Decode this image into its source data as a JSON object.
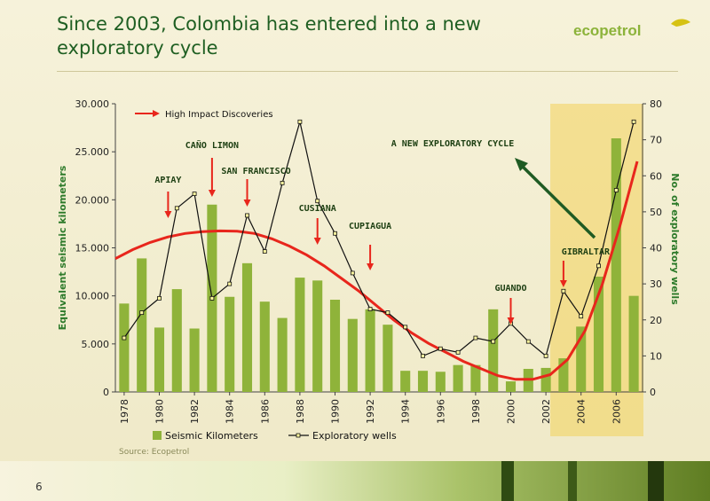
{
  "slide": {
    "title": "Since 2003, Colombia has entered into a new exploratory cycle",
    "logo_text": "ecopetrol",
    "page_number": "6",
    "source": "Source: Ecopetrol"
  },
  "chart_data": {
    "type": "bar",
    "years": [
      1978,
      1979,
      1980,
      1981,
      1982,
      1983,
      1984,
      1985,
      1986,
      1987,
      1988,
      1989,
      1990,
      1991,
      1992,
      1993,
      1994,
      1995,
      1996,
      1997,
      1998,
      1999,
      2000,
      2001,
      2002,
      2003,
      2004,
      2005,
      2006,
      2007
    ],
    "x_tick_labels": [
      "1978",
      "1980",
      "1982",
      "1984",
      "1986",
      "1988",
      "1990",
      "1992",
      "1994",
      "1996",
      "1998",
      "2000",
      "2002",
      "2004",
      "2006"
    ],
    "y_left": {
      "label": "Equivalent seismic kilometers",
      "min": 0,
      "max": 30000,
      "ticks": [
        "0",
        "5.000",
        "10.000",
        "15.000",
        "20.000",
        "25.000",
        "30.000"
      ]
    },
    "y_right": {
      "label": "No. of exploratory wells",
      "min": 0,
      "max": 80,
      "ticks": [
        "0",
        "10",
        "20",
        "30",
        "40",
        "50",
        "60",
        "70",
        "80"
      ]
    },
    "series": [
      {
        "name": "Seismic Kilometers",
        "axis": "left",
        "kind": "bar",
        "color": "#8fb33a",
        "values": [
          9200,
          13900,
          6700,
          10700,
          6600,
          19500,
          9900,
          13400,
          9400,
          7700,
          11900,
          11600,
          9600,
          7600,
          8600,
          7000,
          2200,
          2200,
          2100,
          2800,
          2800,
          8600,
          1100,
          2400,
          2500,
          3500,
          6800,
          12000,
          26400,
          10000
        ]
      },
      {
        "name": "Exploratory wells",
        "axis": "right",
        "kind": "line",
        "color": "#111111",
        "values": [
          15,
          22,
          26,
          51,
          55,
          26,
          30,
          49,
          39,
          58,
          75,
          53,
          44,
          33,
          23,
          22,
          18,
          10,
          12,
          11,
          15,
          14,
          19,
          14,
          10,
          28,
          21,
          35,
          56,
          75
        ]
      }
    ],
    "trend_line": {
      "axis": "right",
      "color": "#e8261c",
      "values": [
        37,
        39.5,
        41.5,
        43,
        44,
        44.5,
        44.7,
        44.6,
        44,
        42.5,
        40.5,
        38,
        35,
        31.5,
        28,
        24,
        20,
        16.5,
        13.5,
        11,
        8.5,
        6.5,
        4.5,
        3.5,
        3.5,
        4.8,
        9,
        17,
        30,
        46,
        64
      ]
    },
    "legend": {
      "position": "bottom",
      "items": [
        "Seismic Kilometers",
        "Exploratory wells"
      ]
    },
    "legend_top": {
      "position": "top-left",
      "text": "High Impact Discoveries"
    },
    "highlight_range": {
      "from": 2003,
      "to": 2007
    },
    "annotations": [
      {
        "text": "CAÑO LIMON",
        "year": 1983
      },
      {
        "text": "APIAY",
        "year": 1980.5
      },
      {
        "text": "SAN FRANCISCO",
        "year": 1985
      },
      {
        "text": "CUSIANA",
        "year": 1989
      },
      {
        "text": "CUPIAGUA",
        "year": 1992
      },
      {
        "text": "GUANDO",
        "year": 2000
      },
      {
        "text": "GIBRALTAR",
        "year": 2003
      },
      {
        "text": "A NEW EXPLORATORY CYCLE",
        "year": 2000
      }
    ]
  }
}
